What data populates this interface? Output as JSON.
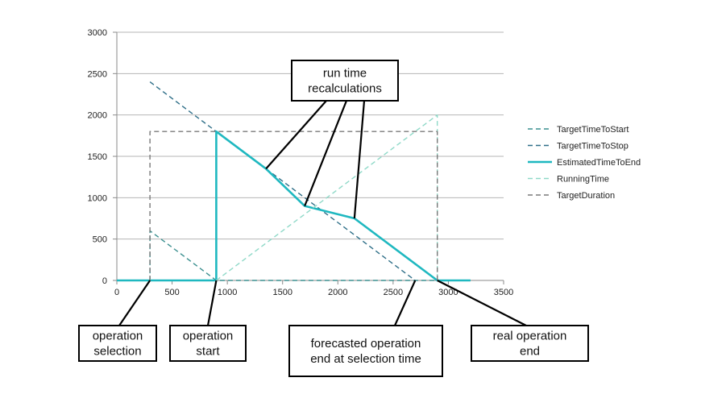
{
  "chart_data": {
    "type": "line",
    "xlim": [
      0,
      3500
    ],
    "ylim": [
      0,
      3000
    ],
    "x_ticks": [
      0,
      500,
      1000,
      1500,
      2000,
      2500,
      3000,
      3500
    ],
    "y_ticks": [
      0,
      500,
      1000,
      1500,
      2000,
      2500,
      3000
    ],
    "x_tick_labels": [
      "0",
      "500",
      "1000",
      "1500",
      "2000",
      "2500",
      "3000",
      "3500"
    ],
    "y_tick_labels": [
      "0",
      "500",
      "1000",
      "1500",
      "2000",
      "2500",
      "3000"
    ],
    "grid": "horizontal",
    "legend_position": "right",
    "series": [
      {
        "name": "TargetTimeToStart",
        "color": "#3a8f8f",
        "style": "dashed",
        "points": [
          [
            0,
            0
          ],
          [
            300,
            0
          ],
          [
            300,
            600
          ],
          [
            900,
            0
          ],
          [
            3200,
            0
          ]
        ]
      },
      {
        "name": "TargetTimeToStop",
        "color": "#2f6f88",
        "style": "dashed",
        "points": [
          [
            300,
            2400
          ],
          [
            2700,
            0
          ]
        ]
      },
      {
        "name": "EstimatedTimeToEnd",
        "color": "#1fb8c0",
        "style": "solid",
        "points": [
          [
            0,
            0
          ],
          [
            900,
            0
          ],
          [
            900,
            1800
          ],
          [
            1350,
            1350
          ],
          [
            1700,
            900
          ],
          [
            2150,
            750
          ],
          [
            2900,
            0
          ],
          [
            3200,
            0
          ]
        ]
      },
      {
        "name": "RunningTime",
        "color": "#8fd9c8",
        "style": "dashed",
        "points": [
          [
            900,
            0
          ],
          [
            2900,
            2000
          ],
          [
            2900,
            0
          ]
        ]
      },
      {
        "name": "TargetDuration",
        "color": "#7a7a7a",
        "style": "dashed",
        "points": [
          [
            300,
            0
          ],
          [
            300,
            1800
          ],
          [
            2900,
            1800
          ],
          [
            2900,
            0
          ]
        ]
      }
    ],
    "annotations": [
      {
        "label": [
          "run time",
          "recalculations"
        ],
        "targets": [
          [
            1350,
            1350
          ],
          [
            1700,
            900
          ],
          [
            2150,
            750
          ]
        ]
      },
      {
        "label": [
          "operation",
          "selection"
        ],
        "targets": [
          [
            300,
            0
          ]
        ]
      },
      {
        "label": [
          "operation",
          "start"
        ],
        "targets": [
          [
            900,
            0
          ]
        ]
      },
      {
        "label": [
          "forecasted operation",
          "end at selection time"
        ],
        "targets": [
          [
            2700,
            0
          ]
        ]
      },
      {
        "label": [
          "real operation",
          "end"
        ],
        "targets": [
          [
            2900,
            0
          ]
        ]
      }
    ]
  }
}
